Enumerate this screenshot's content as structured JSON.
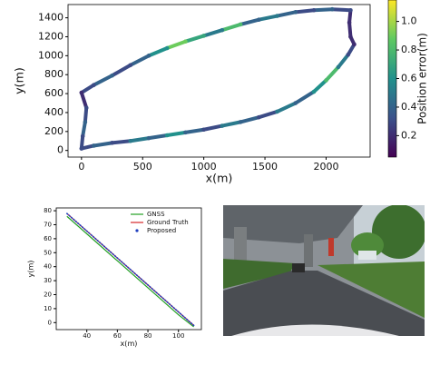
{
  "chart_data": [
    {
      "type": "trajectory",
      "x_label": "x(m)",
      "y_label": "y(m)",
      "x": [
        0,
        100,
        250,
        400,
        550,
        700,
        850,
        1000,
        1150,
        1300,
        1450,
        1600,
        1750,
        1900,
        2000,
        2100,
        2180,
        2230,
        2200,
        2190,
        2200,
        2050,
        1900,
        1750,
        1600,
        1450,
        1300,
        1150,
        1000,
        850,
        700,
        550,
        400,
        250,
        100,
        0,
        40,
        30,
        10
      ],
      "y": [
        20,
        50,
        80,
        100,
        130,
        160,
        190,
        220,
        260,
        300,
        350,
        410,
        500,
        620,
        740,
        880,
        1010,
        1120,
        1200,
        1350,
        1480,
        1490,
        1480,
        1460,
        1420,
        1380,
        1330,
        1270,
        1210,
        1150,
        1080,
        1000,
        900,
        790,
        690,
        610,
        450,
        300,
        150
      ],
      "error": [
        0.3,
        0.4,
        0.3,
        0.5,
        0.4,
        0.6,
        0.4,
        0.3,
        0.5,
        0.4,
        0.3,
        0.5,
        0.4,
        0.6,
        0.8,
        0.5,
        0.3,
        0.2,
        0.2,
        0.2,
        0.3,
        0.4,
        0.3,
        0.4,
        0.5,
        0.4,
        0.8,
        0.5,
        0.7,
        0.9,
        0.6,
        0.4,
        0.3,
        0.4,
        0.3,
        0.2,
        0.3,
        0.4,
        0.3
      ],
      "xlim": [
        -110,
        2360
      ],
      "ylim": [
        -70,
        1540
      ],
      "xticks": [
        0,
        500,
        1000,
        1500,
        2000
      ],
      "yticks": [
        0,
        200,
        400,
        600,
        800,
        1000,
        1200,
        1400
      ],
      "colorbar_label": "Position error(m)",
      "clim": [
        0.05,
        1.15
      ],
      "cticks": [
        0.2,
        0.4,
        0.6,
        0.8,
        {
          "value": 1.0,
          "label": "1.0"
        }
      ],
      "colormap": "viridis"
    },
    {
      "type": "line",
      "x_label": "x(m)",
      "y_label": "y(m)",
      "x": [
        27,
        40,
        60,
        80,
        100,
        110
      ],
      "series": [
        {
          "name": "GNSS",
          "color": "#22a022",
          "style": "solid",
          "values": [
            76,
            63.5,
            44.2,
            24.9,
            5.6,
            -3
          ]
        },
        {
          "name": "Ground Truth",
          "color": "#d62728",
          "style": "solid",
          "values": [
            78,
            65.5,
            46.2,
            26.9,
            7.6,
            -2
          ]
        },
        {
          "name": "Proposed",
          "color": "#1f3fbf",
          "style": "dots",
          "values": [
            78,
            65.5,
            46.2,
            26.9,
            7.6,
            -2
          ]
        }
      ],
      "xlim": [
        20,
        115
      ],
      "ylim": [
        -5,
        82
      ],
      "xticks": [
        40,
        60,
        80,
        100
      ],
      "yticks": [
        0,
        10,
        20,
        30,
        40,
        50,
        60,
        70,
        80
      ],
      "legend": "upper-right"
    }
  ]
}
